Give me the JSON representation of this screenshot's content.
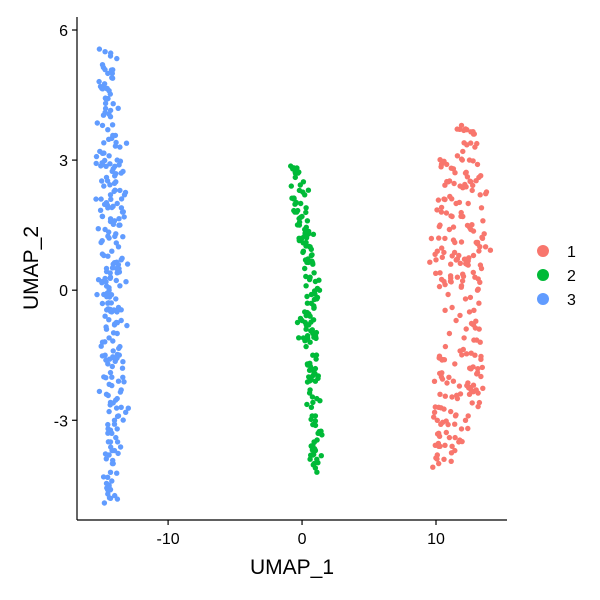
{
  "chart_data": {
    "type": "scatter",
    "title": "",
    "xlabel": "UMAP_1",
    "ylabel": "UMAP_2",
    "xlim": [
      -16.8,
      15.3
    ],
    "ylim": [
      -5.3,
      6.3
    ],
    "x_ticks": [
      -10,
      0,
      10
    ],
    "y_ticks": [
      -3,
      0,
      3,
      6
    ],
    "x_tick_labels": [
      "-10",
      "0",
      "10"
    ],
    "y_tick_labels": [
      "-3",
      "0",
      "3",
      "6"
    ],
    "grid": false,
    "legend": {
      "placement": "right",
      "title": ""
    },
    "series": [
      {
        "name": "1",
        "color": "#F8766D",
        "point_count": 260,
        "points": [
          [
            11.9,
            3.8
          ],
          [
            12.3,
            3.7
          ],
          [
            12.8,
            3.6
          ],
          [
            12.1,
            3.4
          ],
          [
            12.9,
            3.3
          ],
          [
            11.6,
            3.1
          ],
          [
            12.5,
            3.0
          ],
          [
            13.1,
            2.9
          ],
          [
            11.3,
            2.8
          ],
          [
            12.2,
            2.7
          ],
          [
            13.2,
            2.6
          ],
          [
            10.9,
            2.5
          ],
          [
            11.8,
            2.4
          ],
          [
            12.7,
            2.3
          ],
          [
            13.3,
            2.2
          ],
          [
            10.6,
            2.1
          ],
          [
            11.5,
            2.0
          ],
          [
            12.4,
            2.0
          ],
          [
            13.4,
            1.9
          ],
          [
            10.4,
            1.8
          ],
          [
            11.2,
            1.7
          ],
          [
            12.0,
            1.7
          ],
          [
            13.5,
            1.6
          ],
          [
            10.3,
            1.5
          ],
          [
            11.0,
            1.4
          ],
          [
            12.6,
            1.4
          ],
          [
            13.6,
            1.3
          ],
          [
            10.2,
            1.2
          ],
          [
            11.4,
            1.1
          ],
          [
            13.0,
            1.1
          ],
          [
            13.7,
            1.0
          ],
          [
            10.1,
            0.9
          ],
          [
            11.7,
            0.8
          ],
          [
            12.8,
            0.8
          ],
          [
            10.0,
            0.7
          ],
          [
            11.1,
            0.6
          ],
          [
            12.3,
            0.6
          ],
          [
            13.4,
            0.5
          ],
          [
            10.3,
            0.4
          ],
          [
            11.6,
            0.3
          ],
          [
            12.9,
            0.3
          ],
          [
            10.6,
            0.2
          ],
          [
            11.9,
            0.1
          ],
          [
            13.1,
            0.0
          ],
          [
            10.9,
            -0.1
          ],
          [
            12.2,
            -0.2
          ],
          [
            13.2,
            -0.3
          ],
          [
            11.2,
            -0.4
          ],
          [
            12.5,
            -0.5
          ],
          [
            11.5,
            -0.7
          ],
          [
            12.8,
            -0.8
          ],
          [
            11.0,
            -1.0
          ],
          [
            12.1,
            -1.1
          ],
          [
            10.7,
            -1.3
          ],
          [
            11.8,
            -1.4
          ],
          [
            12.9,
            -1.5
          ],
          [
            10.5,
            -1.6
          ],
          [
            11.4,
            -1.7
          ],
          [
            12.6,
            -1.8
          ],
          [
            13.1,
            -1.9
          ],
          [
            10.4,
            -2.0
          ],
          [
            11.3,
            -2.1
          ],
          [
            12.3,
            -2.2
          ],
          [
            13.0,
            -2.3
          ],
          [
            10.3,
            -2.4
          ],
          [
            11.6,
            -2.5
          ],
          [
            12.7,
            -2.6
          ],
          [
            10.2,
            -2.7
          ],
          [
            11.1,
            -2.8
          ],
          [
            12.4,
            -2.9
          ],
          [
            10.1,
            -3.0
          ],
          [
            10.9,
            -3.1
          ],
          [
            11.9,
            -3.2
          ],
          [
            12.2,
            -3.0
          ],
          [
            10.2,
            -3.3
          ],
          [
            11.0,
            -3.4
          ],
          [
            11.7,
            -3.5
          ],
          [
            10.3,
            -3.6
          ],
          [
            11.2,
            -3.6
          ],
          [
            10.1,
            -3.8
          ],
          [
            10.6,
            -3.9
          ],
          [
            10.2,
            -4.0
          ],
          [
            11.4,
            -3.7
          ],
          [
            12.5,
            -2.4
          ],
          [
            13.3,
            -1.2
          ],
          [
            10.8,
            2.9
          ],
          [
            12.0,
            3.2
          ],
          [
            12.6,
            2.5
          ]
        ]
      },
      {
        "name": "2",
        "color": "#00BA38",
        "point_count": 180,
        "points": [
          [
            -0.7,
            2.8
          ],
          [
            -0.3,
            2.7
          ],
          [
            -0.5,
            2.6
          ],
          [
            0.1,
            2.5
          ],
          [
            -0.8,
            2.4
          ],
          [
            -0.2,
            2.3
          ],
          [
            0.2,
            2.2
          ],
          [
            -0.6,
            2.1
          ],
          [
            -0.1,
            2.0
          ],
          [
            0.3,
            1.9
          ],
          [
            -0.4,
            1.8
          ],
          [
            0.0,
            1.7
          ],
          [
            0.4,
            1.6
          ],
          [
            -0.2,
            1.5
          ],
          [
            0.2,
            1.4
          ],
          [
            0.5,
            1.3
          ],
          [
            0.0,
            1.2
          ],
          [
            0.3,
            1.1
          ],
          [
            0.6,
            1.0
          ],
          [
            0.1,
            0.9
          ],
          [
            0.7,
            0.8
          ],
          [
            0.4,
            0.7
          ],
          [
            0.8,
            0.6
          ],
          [
            0.2,
            0.5
          ],
          [
            0.9,
            0.4
          ],
          [
            0.6,
            0.3
          ],
          [
            1.0,
            0.2
          ],
          [
            0.3,
            0.1
          ],
          [
            1.3,
            0.0
          ],
          [
            0.7,
            -0.1
          ],
          [
            1.1,
            -0.2
          ],
          [
            0.4,
            -0.3
          ],
          [
            0.9,
            -0.4
          ],
          [
            0.2,
            -0.5
          ],
          [
            0.6,
            -0.6
          ],
          [
            0.0,
            -0.7
          ],
          [
            0.5,
            -0.8
          ],
          [
            0.3,
            -0.9
          ],
          [
            0.8,
            -1.0
          ],
          [
            0.1,
            -1.1
          ],
          [
            0.6,
            -1.2
          ],
          [
            0.3,
            -1.3
          ],
          [
            0.8,
            -1.5
          ],
          [
            0.4,
            -1.7
          ],
          [
            0.9,
            -1.9
          ],
          [
            0.5,
            -2.0
          ],
          [
            1.0,
            -2.1
          ],
          [
            0.6,
            -2.3
          ],
          [
            1.1,
            -2.5
          ],
          [
            0.7,
            -2.7
          ],
          [
            1.0,
            -2.9
          ],
          [
            0.8,
            -3.1
          ],
          [
            1.2,
            -3.3
          ],
          [
            0.9,
            -3.5
          ],
          [
            0.7,
            -3.6
          ],
          [
            1.0,
            -3.7
          ],
          [
            0.8,
            -3.8
          ],
          [
            1.1,
            -3.9
          ],
          [
            0.9,
            -4.0
          ],
          [
            1.0,
            -4.1
          ]
        ]
      },
      {
        "name": "3",
        "color": "#619CFF",
        "point_count": 280,
        "points": [
          [
            -14.7,
            5.5
          ],
          [
            -14.3,
            5.4
          ],
          [
            -14.9,
            5.2
          ],
          [
            -14.5,
            5.0
          ],
          [
            -14.2,
            4.9
          ],
          [
            -14.8,
            4.7
          ],
          [
            -14.4,
            4.6
          ],
          [
            -14.6,
            4.4
          ],
          [
            -14.1,
            4.3
          ],
          [
            -14.7,
            4.1
          ],
          [
            -14.3,
            4.0
          ],
          [
            -14.9,
            3.8
          ],
          [
            -14.5,
            3.7
          ],
          [
            -14.2,
            3.5
          ],
          [
            -14.8,
            3.4
          ],
          [
            -13.6,
            3.3
          ],
          [
            -15.1,
            3.2
          ],
          [
            -14.4,
            3.1
          ],
          [
            -13.8,
            3.0
          ],
          [
            -14.9,
            2.9
          ],
          [
            -14.1,
            2.8
          ],
          [
            -13.5,
            2.7
          ],
          [
            -14.6,
            2.6
          ],
          [
            -13.9,
            2.5
          ],
          [
            -14.8,
            2.4
          ],
          [
            -13.6,
            2.3
          ],
          [
            -14.3,
            2.2
          ],
          [
            -15.0,
            2.1
          ],
          [
            -13.8,
            2.0
          ],
          [
            -14.5,
            1.9
          ],
          [
            -13.4,
            1.8
          ],
          [
            -14.9,
            1.7
          ],
          [
            -14.0,
            1.6
          ],
          [
            -13.6,
            1.5
          ],
          [
            -14.7,
            1.4
          ],
          [
            -13.9,
            1.3
          ],
          [
            -14.4,
            1.2
          ],
          [
            -15.0,
            1.1
          ],
          [
            -13.7,
            1.0
          ],
          [
            -14.2,
            0.9
          ],
          [
            -14.8,
            0.8
          ],
          [
            -13.5,
            0.7
          ],
          [
            -14.1,
            0.6
          ],
          [
            -14.6,
            0.5
          ],
          [
            -13.8,
            0.4
          ],
          [
            -14.3,
            0.3
          ],
          [
            -14.9,
            0.2
          ],
          [
            -13.6,
            0.1
          ],
          [
            -14.4,
            0.0
          ],
          [
            -14.8,
            -0.1
          ],
          [
            -13.9,
            -0.2
          ],
          [
            -14.5,
            -0.3
          ],
          [
            -13.7,
            -0.4
          ],
          [
            -14.2,
            -0.5
          ],
          [
            -14.7,
            -0.6
          ],
          [
            -13.5,
            -0.7
          ],
          [
            -14.0,
            -0.8
          ],
          [
            -14.6,
            -0.9
          ],
          [
            -13.8,
            -1.0
          ],
          [
            -14.4,
            -1.1
          ],
          [
            -14.9,
            -1.2
          ],
          [
            -13.6,
            -1.3
          ],
          [
            -14.1,
            -1.4
          ],
          [
            -14.7,
            -1.5
          ],
          [
            -13.9,
            -1.6
          ],
          [
            -14.5,
            -1.7
          ],
          [
            -13.4,
            -1.8
          ],
          [
            -14.3,
            -1.9
          ],
          [
            -14.8,
            -2.0
          ],
          [
            -13.7,
            -2.1
          ],
          [
            -14.2,
            -2.2
          ],
          [
            -13.5,
            -2.3
          ],
          [
            -14.6,
            -2.4
          ],
          [
            -13.8,
            -2.5
          ],
          [
            -14.1,
            -2.6
          ],
          [
            -13.5,
            -2.7
          ],
          [
            -14.4,
            -2.8
          ],
          [
            -13.7,
            -2.9
          ],
          [
            -14.0,
            -3.0
          ],
          [
            -14.5,
            -3.1
          ],
          [
            -13.8,
            -3.2
          ],
          [
            -14.2,
            -3.3
          ],
          [
            -13.9,
            -3.4
          ],
          [
            -14.3,
            -3.5
          ],
          [
            -14.0,
            -3.7
          ],
          [
            -14.4,
            -3.8
          ],
          [
            -14.1,
            -4.0
          ],
          [
            -14.3,
            -4.2
          ],
          [
            -14.2,
            -4.4
          ],
          [
            -14.4,
            -4.5
          ],
          [
            -14.3,
            -4.6
          ],
          [
            -14.5,
            -4.7
          ],
          [
            -14.3,
            -4.8
          ]
        ]
      }
    ]
  }
}
